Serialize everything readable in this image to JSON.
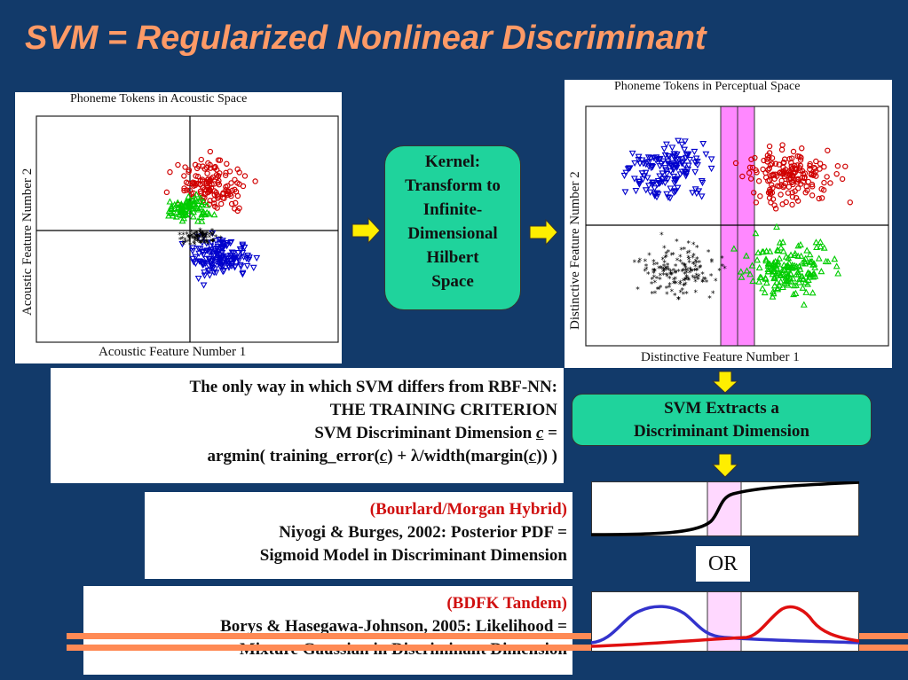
{
  "slide": {
    "title": "SVM = Regularized Nonlinear Discriminant"
  },
  "left_plot": {
    "title": "Phoneme Tokens in Acoustic Space",
    "xlabel": "Acoustic Feature Number 1",
    "ylabel": "Acoustic Feature Number 2"
  },
  "right_plot": {
    "title": "Phoneme Tokens in Perceptual Space",
    "xlabel": "Distinctive Feature Number 1",
    "ylabel": "Distinctive Feature Number 2"
  },
  "kernel_box": {
    "lines": [
      "Kernel:",
      "Transform to",
      "Infinite-",
      "Dimensional",
      "Hilbert",
      "Space"
    ]
  },
  "svm_box": {
    "lines": [
      "SVM Extracts a",
      "Discriminant Dimension"
    ]
  },
  "training_box": {
    "line1": "The only way in which SVM differs from RBF-NN:",
    "line2": "THE TRAINING CRITERION",
    "line3_pre": "SVM Discriminant Dimension ",
    "line3_var": "c",
    "line3_post": " =",
    "line4_a": "argmin( training_error(",
    "line4_var1": "c",
    "line4_b": ") + ",
    "line4_lambda": "λ",
    "line4_c": "/width(margin(",
    "line4_var2": "c",
    "line4_d": ")) )"
  },
  "hybrid_box": {
    "line1": "(Bourlard/Morgan Hybrid)",
    "line2": "Niyogi & Burges, 2002: Posterior PDF = ",
    "line3": "Sigmoid Model in Discriminant Dimension"
  },
  "tandem_box": {
    "line1": "(BDFK Tandem)",
    "line2": "Borys & Hasegawa-Johnson, 2005: Likelihood = ",
    "line3": "Mixture Gaussian in Discriminant Dimension"
  },
  "or_label": "OR",
  "colors": {
    "background": "#123a6a",
    "title": "#ff9a66",
    "box_green": "#1fd39c",
    "arrow_yellow": "#ffee00",
    "stripe_orange": "#ff8a55",
    "highlight_magenta": "#ff88ff",
    "class_red": "#d00000",
    "class_green": "#00cc00",
    "class_blue": "#0000cc",
    "class_black": "#000000"
  }
}
